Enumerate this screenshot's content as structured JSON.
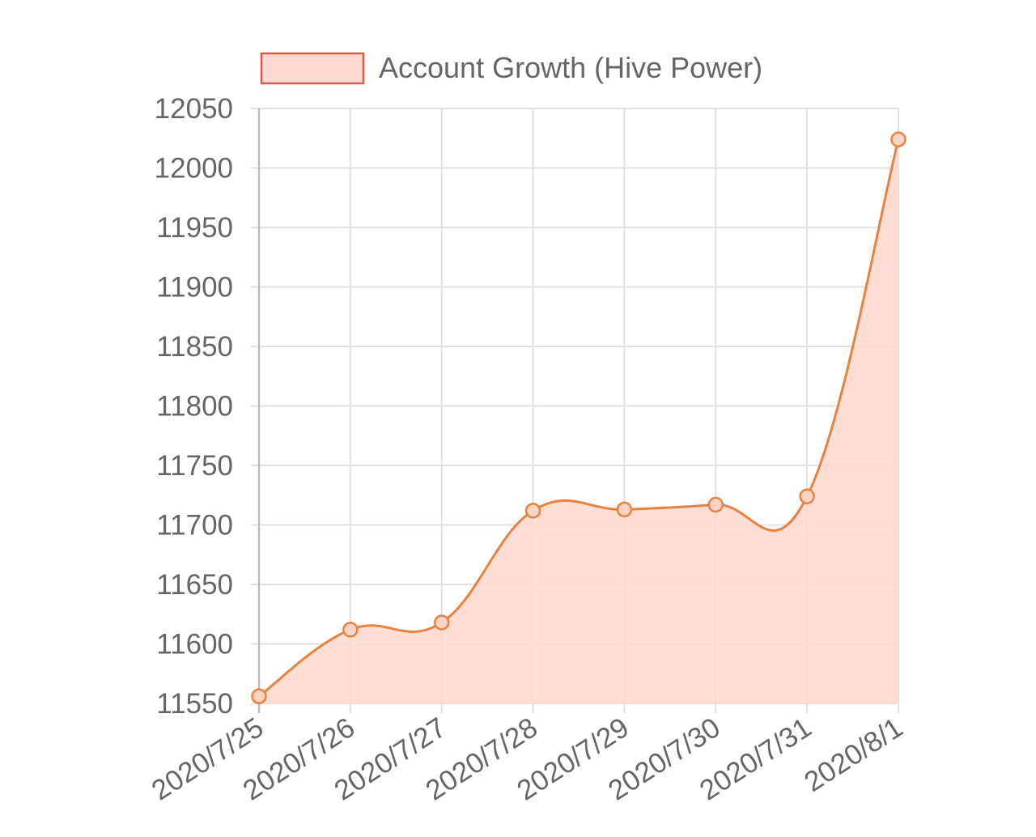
{
  "chart_data": {
    "type": "line",
    "legend": {
      "label": "Account Growth (Hive Power)",
      "position": "top"
    },
    "categories": [
      "2020/7/25",
      "2020/7/26",
      "2020/7/27",
      "2020/7/28",
      "2020/7/29",
      "2020/7/30",
      "2020/7/31",
      "2020/8/1"
    ],
    "series": [
      {
        "name": "Account Growth (Hive Power)",
        "values": [
          11556,
          11612,
          11618,
          11712,
          11713,
          11717,
          11724,
          12024
        ],
        "fill": true,
        "smoothed": true
      }
    ],
    "y_ticks": [
      "11550",
      "11600",
      "11650",
      "11700",
      "11750",
      "11800",
      "11850",
      "11900",
      "11950",
      "12000",
      "12050"
    ],
    "ylim": [
      11550,
      12050
    ],
    "grid": true,
    "colors": {
      "line": "#e8823f",
      "fill": "#fbd8cc",
      "legend_border": "#dd5a45",
      "legend_fill": "#fcd9d3",
      "grid": "#e1e1e1",
      "axis": "#bdbdbd",
      "text": "#666666"
    }
  }
}
